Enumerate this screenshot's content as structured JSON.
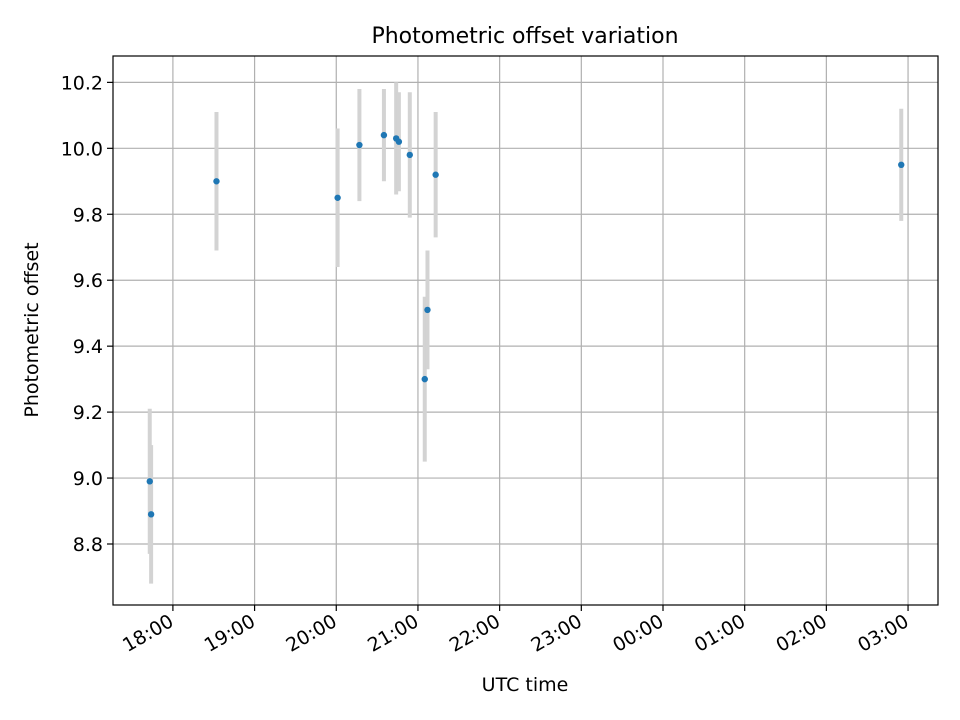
{
  "chart_data": {
    "type": "scatter",
    "title": "Photometric offset variation",
    "xlabel": "UTC time",
    "ylabel": "Photometric offset",
    "xlim": [
      "17:16",
      "03:22"
    ],
    "ylim": [
      8.615,
      10.28
    ],
    "grid": true,
    "x_tick_labels": [
      "18:00",
      "19:00",
      "20:00",
      "21:00",
      "22:00",
      "23:00",
      "00:00",
      "01:00",
      "02:00",
      "03:00"
    ],
    "y_tick_labels": [
      "8.8",
      "9.0",
      "9.2",
      "9.4",
      "9.6",
      "9.8",
      "10.0",
      "10.2"
    ],
    "colors": {
      "marker": "#1f77b4",
      "errorbar": "#d3d3d3",
      "grid": "#b0b0b0"
    },
    "points": [
      {
        "x": "17:43",
        "y": 8.99,
        "yerr": 0.22
      },
      {
        "x": "17:44",
        "y": 8.89,
        "yerr": 0.21
      },
      {
        "x": "18:32",
        "y": 9.9,
        "yerr": 0.21
      },
      {
        "x": "20:01",
        "y": 9.85,
        "yerr": 0.21
      },
      {
        "x": "20:17",
        "y": 10.01,
        "yerr": 0.17
      },
      {
        "x": "20:35",
        "y": 10.04,
        "yerr": 0.14
      },
      {
        "x": "20:44",
        "y": 10.03,
        "yerr": 0.17
      },
      {
        "x": "20:46",
        "y": 10.02,
        "yerr": 0.15
      },
      {
        "x": "20:54",
        "y": 9.98,
        "yerr": 0.19
      },
      {
        "x": "21:05",
        "y": 9.3,
        "yerr": 0.25
      },
      {
        "x": "21:07",
        "y": 9.51,
        "yerr": 0.18
      },
      {
        "x": "21:13",
        "y": 9.92,
        "yerr": 0.19
      },
      {
        "x": "02:55",
        "y": 9.95,
        "yerr": 0.17
      }
    ]
  }
}
